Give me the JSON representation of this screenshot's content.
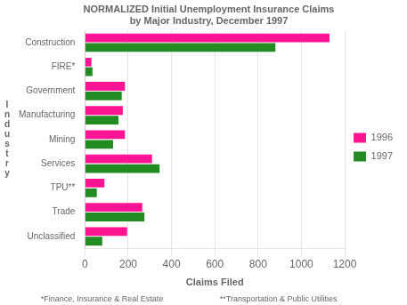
{
  "chart_data": {
    "type": "bar",
    "orientation": "horizontal",
    "title": "NORMALIZED Initial Unemployment Insurance Claims\nby Major Industry, December 1997",
    "xlabel": "Claims Filed",
    "ylabel": "I\nn\nd\nu\ns\nt\nr\ny",
    "categories": [
      "Construction",
      "FIRE*",
      "Government",
      "Manufacturing",
      "Mining",
      "Services",
      "TPU**",
      "Trade",
      "Unclassified"
    ],
    "series": [
      {
        "name": "1996",
        "color": "#FF1493",
        "values": [
          1130,
          30,
          185,
          175,
          185,
          310,
          90,
          265,
          195
        ]
      },
      {
        "name": "1997",
        "color": "#228B22",
        "values": [
          880,
          35,
          170,
          155,
          130,
          345,
          55,
          275,
          80
        ]
      }
    ],
    "xlim": [
      0,
      1200
    ],
    "xticks": [
      0,
      200,
      400,
      600,
      800,
      1000,
      1200
    ],
    "grid": true,
    "legend": "right",
    "annotations": [
      "*Finance, Insurance & Real Estate",
      "**Transportation & Public Utilities"
    ]
  }
}
